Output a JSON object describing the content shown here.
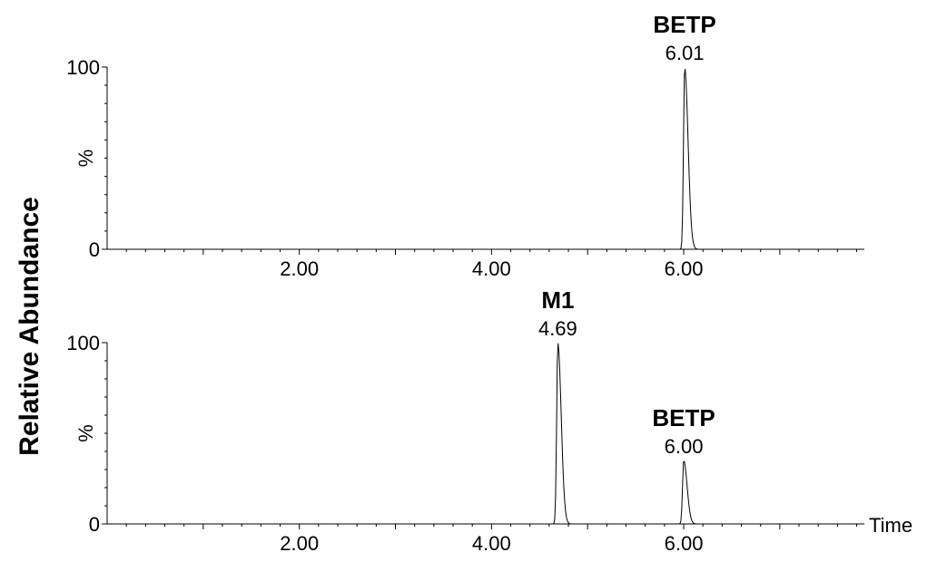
{
  "y_axis_label": "Relative Abundance",
  "x_axis_label": "Time",
  "chart_data": [
    {
      "type": "line",
      "panel": "top",
      "ylabel": "%",
      "xlim": [
        0.0,
        7.88
      ],
      "ylim": [
        0,
        100
      ],
      "y_tick_labels": [
        "0",
        "100"
      ],
      "x_tick_labels": [
        "2.00",
        "4.00",
        "6.00"
      ],
      "x_ticks": [
        2.0,
        4.0,
        6.0
      ],
      "peaks": [
        {
          "name": "BETP",
          "rt": 6.01,
          "rt_label": "6.01",
          "height": 100
        }
      ]
    },
    {
      "type": "line",
      "panel": "bottom",
      "ylabel": "%",
      "xlim": [
        0.0,
        7.88
      ],
      "ylim": [
        0,
        100
      ],
      "y_tick_labels": [
        "0",
        "100"
      ],
      "x_tick_labels": [
        "2.00",
        "4.00",
        "6.00"
      ],
      "x_ticks": [
        2.0,
        4.0,
        6.0
      ],
      "peaks": [
        {
          "name": "M1",
          "rt": 4.69,
          "rt_label": "4.69",
          "height": 100
        },
        {
          "name": "BETP",
          "rt": 6.0,
          "rt_label": "6.00",
          "height": 35
        }
      ]
    }
  ]
}
